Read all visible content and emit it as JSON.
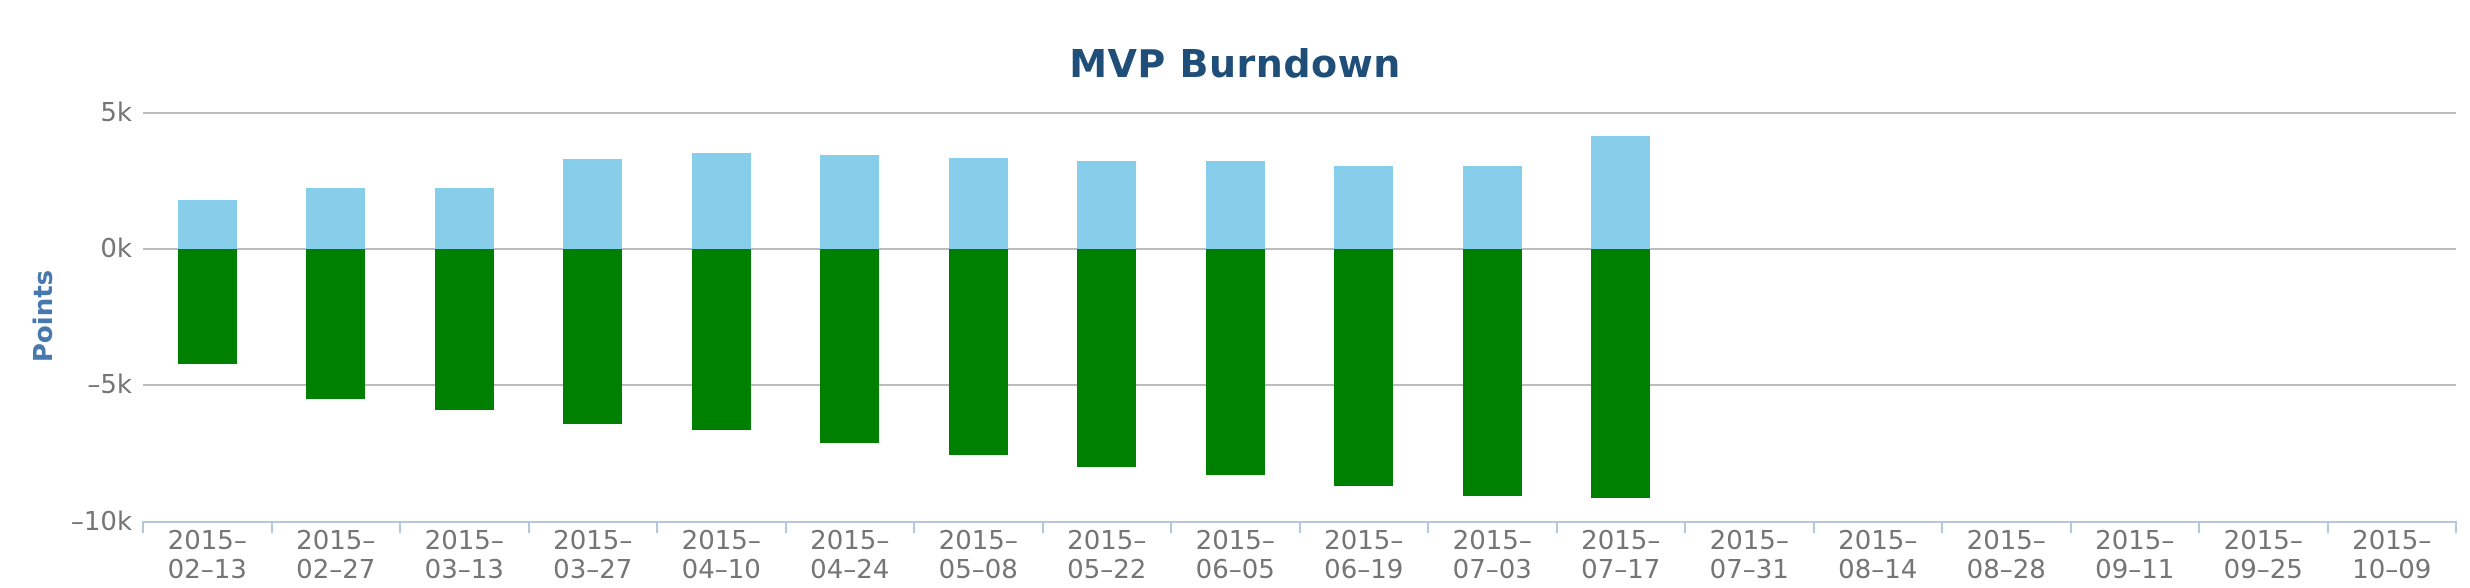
{
  "chart_data": {
    "type": "bar",
    "title": "MVP Burndown",
    "ylabel": "Points",
    "xlabel": "",
    "stacked": true,
    "grid": "horizontal",
    "legend": "none",
    "ylim": [
      -10000,
      5000
    ],
    "yticks": [
      {
        "value": 5000,
        "label": "5k"
      },
      {
        "value": 0,
        "label": "0k"
      },
      {
        "value": -5000,
        "label": "–5k"
      },
      {
        "value": -10000,
        "label": "–10k"
      }
    ],
    "categories": [
      "2015-02-13",
      "2015-02-27",
      "2015-03-13",
      "2015-03-27",
      "2015-04-10",
      "2015-04-24",
      "2015-05-08",
      "2015-05-22",
      "2015-06-05",
      "2015-06-19",
      "2015-07-03",
      "2015-07-17",
      "2015-07-31",
      "2015-08-14",
      "2015-08-28",
      "2015-09-11",
      "2015-09-25",
      "2015-10-09"
    ],
    "series": [
      {
        "id": "points-remaining-positive",
        "color": "#87CEEB",
        "values": [
          1800,
          2250,
          2250,
          3300,
          3550,
          3450,
          3350,
          3250,
          3250,
          3050,
          3050,
          4150,
          null,
          null,
          null,
          null,
          null,
          null
        ]
      },
      {
        "id": "points-completed-negative",
        "color": "#008000",
        "values": [
          -4200,
          -5500,
          -5900,
          -6400,
          -6650,
          -7100,
          -7550,
          -8000,
          -8300,
          -8700,
          -9050,
          -9150,
          null,
          null,
          null,
          null,
          null,
          null
        ]
      }
    ]
  },
  "colors": {
    "title_text": "#1F4E79",
    "y_axis_title_text": "#4779AE",
    "tick_label_text": "#757575",
    "gridline": "#BCBCBC",
    "axis_line": "#B3C8E0",
    "background": "#FFFFFF"
  }
}
